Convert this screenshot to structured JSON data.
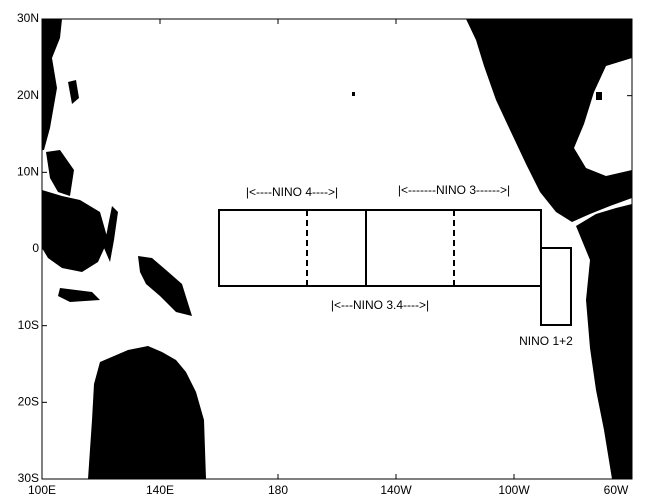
{
  "map": {
    "lat_labels": [
      "30N",
      "20N",
      "10N",
      "0",
      "10S",
      "20S",
      "30S"
    ],
    "lon_labels": [
      "100E",
      "140E",
      "180",
      "140W",
      "100W",
      "60W"
    ],
    "regions": [
      {
        "label": "|<----NINO 4---->|"
      },
      {
        "label": "|<-------NINO 3------>|"
      },
      {
        "label": "|<---NINO 3.4---->|"
      },
      {
        "label": "NINO 1+2"
      }
    ]
  }
}
